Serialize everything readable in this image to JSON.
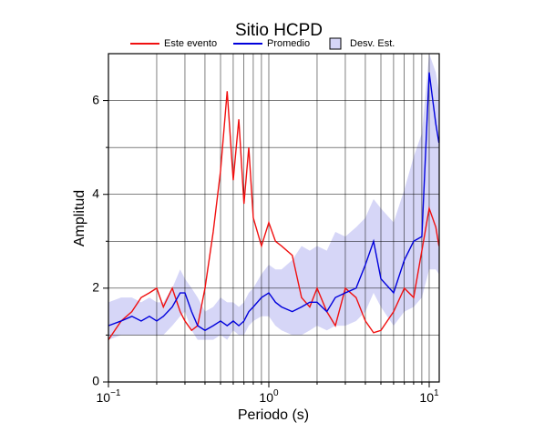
{
  "chart_data": {
    "type": "line",
    "title": "Sitio HCPD",
    "x_label": "Periodo (s)",
    "y_label": "Amplitud",
    "log_x": true,
    "grid": true,
    "legend_position": "top",
    "xlim": [
      0.1,
      11.55
    ],
    "ylim": [
      0,
      7
    ],
    "xticks": [
      {
        "value": 0.1,
        "label": "10",
        "exponent": "−1"
      },
      {
        "value": 1,
        "label": "10",
        "exponent": "0"
      },
      {
        "value": 10,
        "label": "10",
        "exponent": "1"
      }
    ],
    "xminorticks": [
      0.2,
      0.3,
      0.4,
      0.5,
      0.6,
      0.7,
      0.8,
      0.9,
      2,
      3,
      4,
      5,
      6,
      7,
      8,
      9
    ],
    "yticks": [
      0,
      2,
      4,
      6
    ],
    "yminorticks": [
      1,
      3,
      5
    ],
    "x": [
      0.1,
      0.12,
      0.14,
      0.16,
      0.18,
      0.2,
      0.22,
      0.25,
      0.28,
      0.3,
      0.33,
      0.36,
      0.4,
      0.45,
      0.5,
      0.55,
      0.6,
      0.65,
      0.7,
      0.75,
      0.8,
      0.9,
      1.0,
      1.1,
      1.2,
      1.4,
      1.6,
      1.8,
      2.0,
      2.3,
      2.6,
      3.0,
      3.5,
      4.0,
      4.5,
      5.0,
      6.0,
      7.0,
      8.0,
      9.0,
      10,
      11,
      11.5
    ],
    "band": {
      "name": "Desv. Est.",
      "color": "#d6d6f7",
      "edge": "#000000",
      "upper": [
        1.7,
        1.8,
        1.8,
        1.7,
        1.8,
        1.7,
        1.7,
        2.0,
        2.4,
        2.2,
        2.0,
        1.8,
        1.5,
        1.6,
        1.8,
        1.7,
        1.7,
        1.6,
        1.7,
        1.9,
        2.0,
        2.3,
        2.5,
        2.4,
        2.4,
        2.6,
        2.9,
        2.8,
        2.9,
        2.8,
        3.2,
        3.1,
        3.3,
        3.5,
        3.9,
        3.7,
        3.4,
        4.1,
        4.8,
        5.3,
        7.0,
        6.6,
        6.2
      ],
      "lower": [
        0.9,
        1.0,
        1.0,
        1.0,
        1.0,
        1.0,
        1.0,
        1.2,
        1.4,
        1.5,
        1.1,
        0.9,
        0.9,
        0.9,
        1.0,
        0.9,
        1.1,
        1.0,
        1.0,
        1.2,
        1.3,
        1.4,
        1.4,
        1.2,
        1.1,
        1.0,
        1.0,
        1.1,
        1.2,
        1.1,
        1.2,
        1.2,
        1.3,
        1.5,
        1.9,
        1.6,
        1.2,
        1.5,
        1.6,
        1.8,
        2.4,
        2.4,
        2.3
      ]
    },
    "series": [
      {
        "name": "Este evento",
        "color": "#f01010",
        "values": [
          0.9,
          1.3,
          1.5,
          1.8,
          1.9,
          2.0,
          1.6,
          2.0,
          1.5,
          1.3,
          1.1,
          1.2,
          2.0,
          3.2,
          4.5,
          6.2,
          4.3,
          5.6,
          3.8,
          5.0,
          3.5,
          2.9,
          3.4,
          3.0,
          2.9,
          2.7,
          1.8,
          1.6,
          2.0,
          1.5,
          1.2,
          2.0,
          1.8,
          1.3,
          1.05,
          1.1,
          1.5,
          2.0,
          1.8,
          2.8,
          3.7,
          3.3,
          2.9
        ]
      },
      {
        "name": "Promedio",
        "color": "#0000dc",
        "values": [
          1.2,
          1.3,
          1.4,
          1.3,
          1.4,
          1.3,
          1.4,
          1.6,
          1.9,
          1.9,
          1.5,
          1.2,
          1.1,
          1.2,
          1.3,
          1.2,
          1.3,
          1.2,
          1.3,
          1.5,
          1.6,
          1.8,
          1.9,
          1.7,
          1.6,
          1.5,
          1.6,
          1.7,
          1.7,
          1.5,
          1.8,
          1.9,
          2.0,
          2.5,
          3.0,
          2.2,
          1.9,
          2.6,
          3.0,
          3.1,
          6.6,
          5.5,
          5.1
        ]
      }
    ]
  }
}
